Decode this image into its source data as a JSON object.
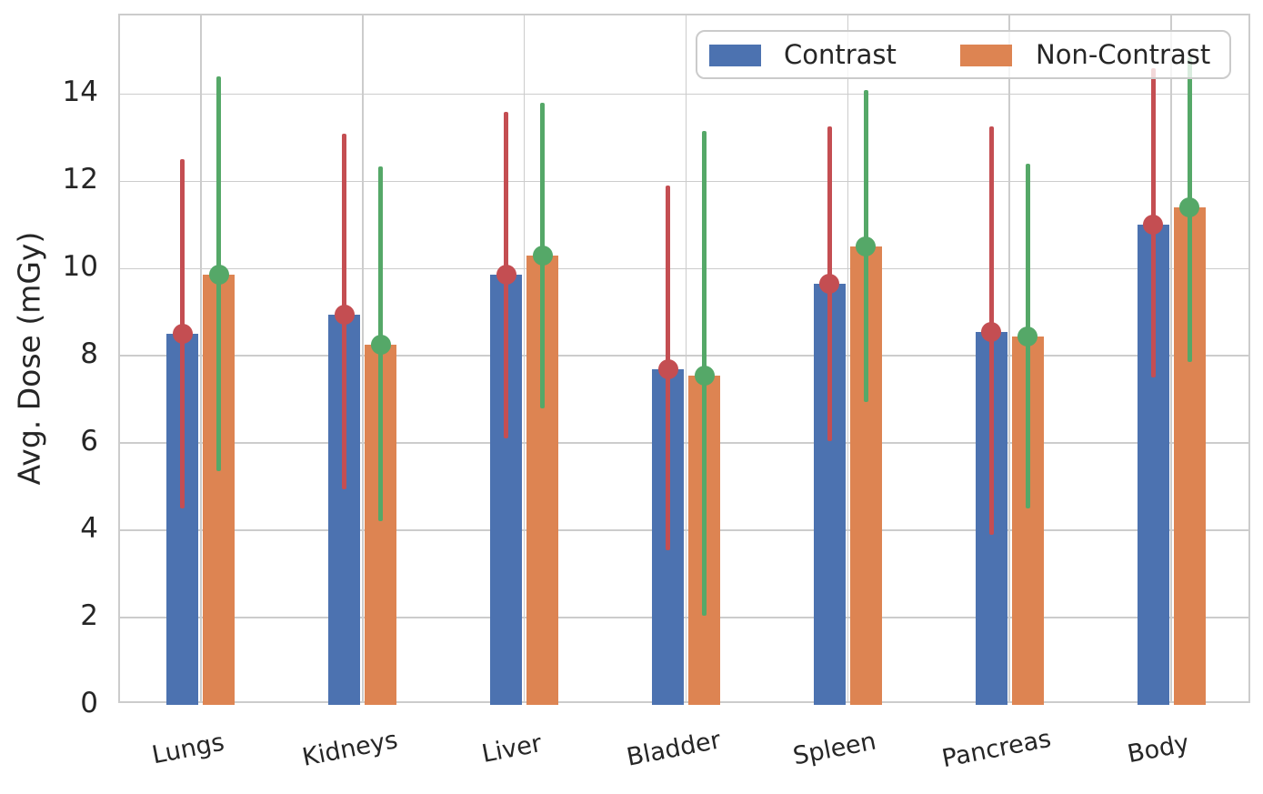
{
  "chart_data": {
    "type": "bar",
    "title": "",
    "xlabel": "",
    "ylabel": "Avg. Dose (mGy)",
    "categories": [
      "Lungs",
      "Kidneys",
      "Liver",
      "Bladder",
      "Spleen",
      "Pancreas",
      "Body"
    ],
    "yticks": [
      0,
      2,
      4,
      6,
      8,
      10,
      12,
      14
    ],
    "ylim": [
      0,
      15.8
    ],
    "grid": true,
    "legend_position": "upper right",
    "series": [
      {
        "name": "Contrast",
        "color": "#4C72B0",
        "error_color": "#C44E52",
        "values": [
          8.5,
          8.95,
          9.85,
          7.7,
          9.65,
          8.55,
          11.0
        ],
        "error_low": [
          4.5,
          4.95,
          6.1,
          3.55,
          6.05,
          3.9,
          7.5
        ],
        "error_high": [
          12.5,
          13.1,
          13.6,
          11.9,
          13.25,
          13.25,
          14.6
        ]
      },
      {
        "name": "Non-Contrast",
        "color": "#DD8452",
        "error_color": "#55A868",
        "values": [
          9.85,
          8.25,
          10.3,
          7.55,
          10.5,
          8.45,
          11.4
        ],
        "error_low": [
          5.35,
          4.2,
          6.8,
          2.05,
          6.95,
          4.5,
          7.85
        ],
        "error_high": [
          14.4,
          12.35,
          13.8,
          13.15,
          14.1,
          12.4,
          14.85
        ]
      }
    ]
  },
  "colors": {
    "background": "#ffffff",
    "grid": "#cccccc",
    "spine": "#cccccc",
    "text": "#262626",
    "legend_border": "#cbcbcb"
  }
}
